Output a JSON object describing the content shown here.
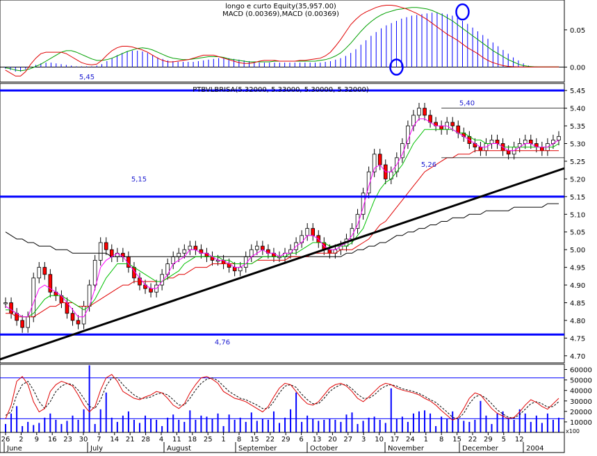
{
  "chart_data": {
    "type": "candlestick",
    "macd_panel": {
      "title": "longo e curto Equity(35,957.00)",
      "subtitle": "MACD (0.00369),MACD (0.00369)",
      "y_ticks": [
        "0.05",
        "0.00"
      ],
      "ylim": [
        -0.02,
        0.09
      ],
      "histogram": [
        -0.002,
        -0.004,
        -0.006,
        -0.006,
        -0.003,
        0,
        0.003,
        0.005,
        0.006,
        0.006,
        0.005,
        0.004,
        0.003,
        0.002,
        0.001,
        0.001,
        0.001,
        0.001,
        0.002,
        0.004,
        0.008,
        0.012,
        0.016,
        0.019,
        0.021,
        0.022,
        0.022,
        0.021,
        0.019,
        0.016,
        0.013,
        0.011,
        0.009,
        0.008,
        0.007,
        0.007,
        0.007,
        0.007,
        0.008,
        0.009,
        0.01,
        0.011,
        0.012,
        0.012,
        0.012,
        0.011,
        0.01,
        0.009,
        0.008,
        0.007,
        0.006,
        0.006,
        0.006,
        0.006,
        0.006,
        0.006,
        0.006,
        0.006,
        0.006,
        0.006,
        0.006,
        0.006,
        0.006,
        0.007,
        0.008,
        0.01,
        0.012,
        0.015,
        0.019,
        0.024,
        0.03,
        0.036,
        0.042,
        0.047,
        0.052,
        0.056,
        0.059,
        0.062,
        0.065,
        0.067,
        0.069,
        0.07,
        0.071,
        0.072,
        0.073,
        0.073,
        0.072,
        0.071,
        0.069,
        0.066,
        0.062,
        0.058,
        0.053,
        0.048,
        0.043,
        0.038,
        0.033,
        0.028,
        0.023,
        0.018,
        0.013,
        0.009,
        0.005,
        0.002,
        0.001,
        0.0005,
        0.0003,
        0.0002,
        0.0002,
        0.0003
      ],
      "signal": [
        -0.001,
        -0.002,
        -0.004,
        -0.005,
        -0.004,
        -0.002,
        0.001,
        0.004,
        0.008,
        0.012,
        0.016,
        0.02,
        0.022,
        0.022,
        0.02,
        0.017,
        0.014,
        0.011,
        0.009,
        0.009,
        0.01,
        0.012,
        0.015,
        0.018,
        0.021,
        0.023,
        0.025,
        0.026,
        0.025,
        0.023,
        0.02,
        0.017,
        0.014,
        0.012,
        0.011,
        0.01,
        0.01,
        0.011,
        0.012,
        0.013,
        0.014,
        0.014,
        0.014,
        0.013,
        0.011,
        0.01,
        0.009,
        0.008,
        0.007,
        0.007,
        0.007,
        0.007,
        0.007,
        0.008,
        0.008,
        0.008,
        0.008,
        0.008,
        0.008,
        0.008,
        0.008,
        0.008,
        0.009,
        0.01,
        0.012,
        0.015,
        0.019,
        0.025,
        0.032,
        0.04,
        0.048,
        0.055,
        0.061,
        0.066,
        0.07,
        0.073,
        0.075,
        0.077,
        0.078,
        0.079,
        0.08,
        0.08,
        0.079,
        0.078,
        0.076,
        0.073,
        0.07,
        0.066,
        0.062,
        0.057,
        0.052,
        0.047,
        0.042,
        0.037,
        0.032,
        0.027,
        0.022,
        0.018,
        0.014,
        0.01,
        0.007,
        0.004,
        0.002,
        0.001,
        0.0005,
        0.0003,
        0.0002,
        0.0002,
        0.0002,
        0.0002
      ],
      "macd": [
        -0.004,
        -0.008,
        -0.012,
        -0.012,
        -0.006,
        0.004,
        0.012,
        0.018,
        0.02,
        0.02,
        0.02,
        0.02,
        0.018,
        0.014,
        0.01,
        0.006,
        0.004,
        0.003,
        0.004,
        0.009,
        0.016,
        0.022,
        0.026,
        0.028,
        0.028,
        0.027,
        0.025,
        0.023,
        0.02,
        0.016,
        0.012,
        0.009,
        0.007,
        0.007,
        0.008,
        0.009,
        0.01,
        0.012,
        0.014,
        0.016,
        0.016,
        0.016,
        0.014,
        0.012,
        0.01,
        0.008,
        0.006,
        0.005,
        0.005,
        0.006,
        0.008,
        0.009,
        0.009,
        0.009,
        0.008,
        0.008,
        0.008,
        0.008,
        0.009,
        0.009,
        0.01,
        0.011,
        0.012,
        0.015,
        0.02,
        0.028,
        0.037,
        0.047,
        0.057,
        0.064,
        0.07,
        0.074,
        0.077,
        0.08,
        0.082,
        0.083,
        0.083,
        0.082,
        0.08,
        0.078,
        0.075,
        0.072,
        0.068,
        0.064,
        0.059,
        0.054,
        0.049,
        0.044,
        0.04,
        0.036,
        0.031,
        0.026,
        0.022,
        0.018,
        0.013,
        0.009,
        0.006,
        0.004,
        0.002,
        0.001,
        0.0005,
        0.0003,
        0.0002,
        0.0001,
        0.0001,
        0.0002,
        0.0002,
        0.0003,
        0.0003,
        0.0003
      ],
      "markers": [
        {
          "index": 77,
          "value": 0.0
        },
        {
          "index": 90,
          "value": 0.074
        },
        {
          "index": 119,
          "value": 0.0
        }
      ]
    },
    "price_panel": {
      "title": "PTBVLBRISA(5.32000, 5.33000, 5.30000, 5.32000)",
      "y_ticks": [
        "5.45",
        "5.40",
        "5.35",
        "5.30",
        "5.25",
        "5.20",
        "5.15",
        "5.10",
        "5.05",
        "5.00",
        "4.95",
        "4.90",
        "4.85",
        "4.80",
        "4.75",
        "4.70"
      ],
      "ylim": [
        4.68,
        5.47
      ],
      "close": [
        4.85,
        4.82,
        4.8,
        4.78,
        4.81,
        4.92,
        4.95,
        4.93,
        4.88,
        4.87,
        4.85,
        4.82,
        4.8,
        4.79,
        4.84,
        4.9,
        4.97,
        5.02,
        5.0,
        4.98,
        4.99,
        4.98,
        4.95,
        4.92,
        4.9,
        4.89,
        4.88,
        4.9,
        4.93,
        4.96,
        4.98,
        4.99,
        5.0,
        5.01,
        5.0,
        4.99,
        4.98,
        4.97,
        4.97,
        4.96,
        4.95,
        4.94,
        4.95,
        4.98,
        5.0,
        5.01,
        5.0,
        4.99,
        4.98,
        4.98,
        4.99,
        5.0,
        5.02,
        5.04,
        5.06,
        5.04,
        5.02,
        5.0,
        4.99,
        5.0,
        5.01,
        5.03,
        5.06,
        5.1,
        5.16,
        5.22,
        5.27,
        5.24,
        5.2,
        5.22,
        5.26,
        5.3,
        5.35,
        5.38,
        5.4,
        5.38,
        5.36,
        5.35,
        5.34,
        5.36,
        5.35,
        5.33,
        5.32,
        5.3,
        5.29,
        5.28,
        5.3,
        5.31,
        5.3,
        5.28,
        5.27,
        5.29,
        5.3,
        5.31,
        5.3,
        5.29,
        5.28,
        5.3,
        5.31,
        5.32
      ],
      "ma_short": [
        4.84,
        4.83,
        4.82,
        4.81,
        4.81,
        4.85,
        4.89,
        4.9,
        4.89,
        4.88,
        4.87,
        4.85,
        4.83,
        4.81,
        4.81,
        4.84,
        4.89,
        4.95,
        4.97,
        4.98,
        4.99,
        4.98,
        4.96,
        4.94,
        4.92,
        4.9,
        4.89,
        4.89,
        4.91,
        4.93,
        4.96,
        4.97,
        4.98,
        5.0,
        5.0,
        4.99,
        4.99,
        4.98,
        4.97,
        4.97,
        4.96,
        4.95,
        4.95,
        4.96,
        4.98,
        4.99,
        5.0,
        4.99,
        4.99,
        4.98,
        4.99,
        4.99,
        5.01,
        5.02,
        5.04,
        5.04,
        5.03,
        5.01,
        5.0,
        5.0,
        5.01,
        5.02,
        5.04,
        5.07,
        5.12,
        5.18,
        5.23,
        5.24,
        5.22,
        5.22,
        5.24,
        5.27,
        5.31,
        5.35,
        5.37,
        5.37,
        5.36,
        5.35,
        5.35,
        5.35,
        5.34,
        5.33,
        5.32,
        5.31,
        5.3,
        5.29,
        5.29,
        5.3,
        5.3,
        5.29,
        5.28,
        5.28,
        5.29,
        5.3,
        5.3,
        5.29,
        5.29,
        5.29,
        5.3,
        5.31
      ],
      "ma_medium": [
        4.83,
        4.83,
        4.82,
        4.81,
        4.81,
        4.82,
        4.84,
        4.86,
        4.87,
        4.87,
        4.87,
        4.86,
        4.85,
        4.84,
        4.83,
        4.84,
        4.86,
        4.89,
        4.92,
        4.94,
        4.96,
        4.96,
        4.96,
        4.95,
        4.94,
        4.93,
        4.92,
        4.91,
        4.91,
        4.92,
        4.93,
        4.94,
        4.96,
        4.97,
        4.98,
        4.98,
        4.98,
        4.98,
        4.98,
        4.97,
        4.97,
        4.96,
        4.96,
        4.96,
        4.96,
        4.97,
        4.98,
        4.98,
        4.98,
        4.98,
        4.98,
        4.99,
        4.99,
        5.0,
        5.01,
        5.02,
        5.02,
        5.02,
        5.01,
        5.01,
        5.01,
        5.01,
        5.02,
        5.04,
        5.06,
        5.1,
        5.14,
        5.17,
        5.19,
        5.2,
        5.22,
        5.24,
        5.27,
        5.3,
        5.32,
        5.34,
        5.34,
        5.34,
        5.34,
        5.34,
        5.34,
        5.33,
        5.33,
        5.32,
        5.31,
        5.31,
        5.3,
        5.3,
        5.3,
        5.29,
        5.29,
        5.29,
        5.29,
        5.29,
        5.29,
        5.29,
        5.29,
        5.29,
        5.29,
        5.3
      ],
      "ma_long": [
        4.82,
        4.82,
        4.81,
        4.81,
        4.81,
        4.81,
        4.82,
        4.83,
        4.84,
        4.84,
        4.85,
        4.85,
        4.85,
        4.84,
        4.84,
        4.84,
        4.85,
        4.86,
        4.87,
        4.88,
        4.89,
        4.9,
        4.9,
        4.91,
        4.91,
        4.91,
        4.91,
        4.91,
        4.91,
        4.92,
        4.92,
        4.93,
        4.93,
        4.94,
        4.95,
        4.95,
        4.95,
        4.96,
        4.96,
        4.96,
        4.96,
        4.96,
        4.96,
        4.96,
        4.96,
        4.97,
        4.97,
        4.97,
        4.97,
        4.97,
        4.97,
        4.98,
        4.98,
        4.98,
        4.98,
        4.99,
        4.99,
        4.99,
        4.99,
        4.99,
        5.0,
        5.0,
        5.0,
        5.01,
        5.02,
        5.03,
        5.05,
        5.07,
        5.08,
        5.1,
        5.12,
        5.14,
        5.16,
        5.18,
        5.2,
        5.22,
        5.23,
        5.24,
        5.25,
        5.26,
        5.26,
        5.27,
        5.27,
        5.27,
        5.28,
        5.28,
        5.28,
        5.28,
        5.28,
        5.28,
        5.28,
        5.28,
        5.28,
        5.28,
        5.28,
        5.28,
        5.28,
        5.28,
        5.28,
        5.28
      ],
      "ma_200": [
        5.05,
        5.04,
        5.03,
        5.03,
        5.02,
        5.02,
        5.01,
        5.01,
        5.01,
        5.0,
        5.0,
        5.0,
        4.99,
        4.99,
        4.99,
        4.99,
        4.99,
        4.99,
        4.99,
        4.98,
        4.98,
        4.98,
        4.98,
        4.98,
        4.98,
        4.98,
        4.98,
        4.98,
        4.98,
        4.98,
        4.98,
        4.98,
        4.98,
        4.98,
        4.98,
        4.98,
        4.98,
        4.98,
        4.98,
        4.98,
        4.98,
        4.98,
        4.98,
        4.98,
        4.98,
        4.98,
        4.98,
        4.98,
        4.98,
        4.98,
        4.98,
        4.98,
        4.98,
        4.98,
        4.98,
        4.98,
        4.98,
        4.98,
        4.98,
        4.98,
        4.98,
        4.99,
        4.99,
        5.0,
        5.0,
        5.01,
        5.01,
        5.02,
        5.02,
        5.03,
        5.04,
        5.04,
        5.05,
        5.05,
        5.06,
        5.06,
        5.07,
        5.07,
        5.08,
        5.08,
        5.09,
        5.09,
        5.09,
        5.1,
        5.1,
        5.1,
        5.11,
        5.11,
        5.11,
        5.11,
        5.11,
        5.12,
        5.12,
        5.12,
        5.12,
        5.12,
        5.12,
        5.13,
        5.13,
        5.13
      ],
      "trendline": {
        "from_index": 0,
        "from_value": 4.69,
        "to_index": 99,
        "to_value": 5.23
      },
      "horizontal_lines": [
        {
          "value": 5.45,
          "label": "5,45"
        },
        {
          "value": 5.15,
          "label": "5,15"
        },
        {
          "value": 4.76,
          "label": "4,76"
        }
      ],
      "channel": {
        "high": 5.4,
        "high_label": "5,40",
        "low": 5.26,
        "low_label": "5,26"
      }
    },
    "stochastic_volume_panel": {
      "y_ticks": [
        "60000",
        "50000",
        "40000",
        "30000",
        "20000",
        "10000"
      ],
      "multiplier_label": "x100",
      "ylim": [
        0,
        65000
      ],
      "stoch_k": [
        20,
        40,
        75,
        82,
        70,
        45,
        30,
        35,
        60,
        70,
        75,
        72,
        68,
        55,
        40,
        30,
        38,
        62,
        80,
        85,
        75,
        60,
        55,
        50,
        48,
        52,
        55,
        60,
        58,
        50,
        40,
        35,
        42,
        58,
        70,
        80,
        82,
        78,
        72,
        60,
        55,
        50,
        48,
        45,
        40,
        35,
        30,
        38,
        52,
        65,
        72,
        70,
        60,
        50,
        42,
        40,
        45,
        55,
        65,
        70,
        72,
        68,
        60,
        50,
        45,
        52,
        60,
        68,
        72,
        70,
        65,
        62,
        60,
        58,
        55,
        50,
        46,
        40,
        32,
        25,
        18,
        22,
        35,
        50,
        58,
        55,
        45,
        35,
        28,
        24,
        20,
        22,
        30,
        40,
        48,
        44,
        38,
        34,
        42,
        50
      ],
      "stoch_d": [
        25,
        30,
        55,
        70,
        75,
        62,
        45,
        35,
        45,
        60,
        68,
        72,
        70,
        62,
        50,
        38,
        35,
        48,
        68,
        80,
        80,
        70,
        62,
        55,
        50,
        50,
        52,
        56,
        58,
        55,
        48,
        40,
        40,
        50,
        62,
        72,
        78,
        80,
        76,
        68,
        60,
        55,
        50,
        48,
        44,
        40,
        35,
        35,
        45,
        58,
        68,
        70,
        66,
        56,
        48,
        42,
        42,
        50,
        60,
        66,
        70,
        70,
        64,
        56,
        50,
        50,
        55,
        63,
        68,
        70,
        68,
        64,
        62,
        60,
        57,
        53,
        48,
        44,
        37,
        30,
        22,
        20,
        28,
        42,
        52,
        55,
        50,
        42,
        33,
        27,
        22,
        21,
        26,
        34,
        42,
        45,
        42,
        37,
        38,
        45
      ],
      "volume": [
        8000,
        18000,
        25000,
        6000,
        10000,
        7000,
        9000,
        14000,
        18000,
        12000,
        8000,
        11000,
        16000,
        12000,
        22000,
        64000,
        8000,
        22000,
        38000,
        14000,
        10000,
        16000,
        20000,
        12000,
        9000,
        16000,
        13000,
        12000,
        6000,
        14000,
        17000,
        12000,
        10000,
        21000,
        12000,
        16000,
        15000,
        13000,
        18000,
        6000,
        17000,
        12000,
        14000,
        10000,
        19000,
        11000,
        13000,
        12000,
        20000,
        9000,
        14000,
        22000,
        38000,
        10000,
        16000,
        13000,
        11000,
        12000,
        13000,
        12000,
        10000,
        17000,
        19000,
        8000,
        11000,
        14000,
        15000,
        12000,
        9000,
        42000,
        13000,
        15000,
        10000,
        18000,
        20000,
        21000,
        18000,
        6000,
        15000,
        13000,
        20000,
        13000,
        11000,
        10000,
        12000,
        30000,
        16000,
        8000,
        18000,
        20000,
        14000,
        12000,
        22000,
        18000,
        10000,
        16000,
        9000,
        18000,
        12000,
        14000
      ],
      "level_lines": [
        80,
        20
      ]
    },
    "x_axis": {
      "tick_labels": [
        "26",
        "2",
        "9",
        "16",
        "23",
        "30",
        "7",
        "14",
        "21",
        "28",
        "4",
        "11",
        "18",
        "25",
        "1",
        "8",
        "15",
        "22",
        "29",
        "6",
        "13",
        "20",
        "27",
        "3",
        "10",
        "17",
        "24",
        "1",
        "8",
        "15",
        "22",
        "29",
        "5",
        "12"
      ],
      "month_labels": [
        "June",
        "July",
        "August",
        "September",
        "October",
        "November",
        "December",
        "2004"
      ]
    },
    "colors": {
      "ma_short": "#ff00ff",
      "ma_medium": "#00c000",
      "ma_long": "#e00000",
      "ma_200": "#000000",
      "trendline": "#000000",
      "support_resistance": "#0000ff",
      "macd_hist": "#0000ff",
      "macd_line": "#e00000",
      "macd_signal": "#00a000",
      "stoch_k": "#e00000",
      "stoch_d": "#000000",
      "volume": "#0000ff",
      "bull_candle": "#ffffff",
      "bear_candle": "#ff0000",
      "annotation_text": "#1a1ad0"
    }
  }
}
